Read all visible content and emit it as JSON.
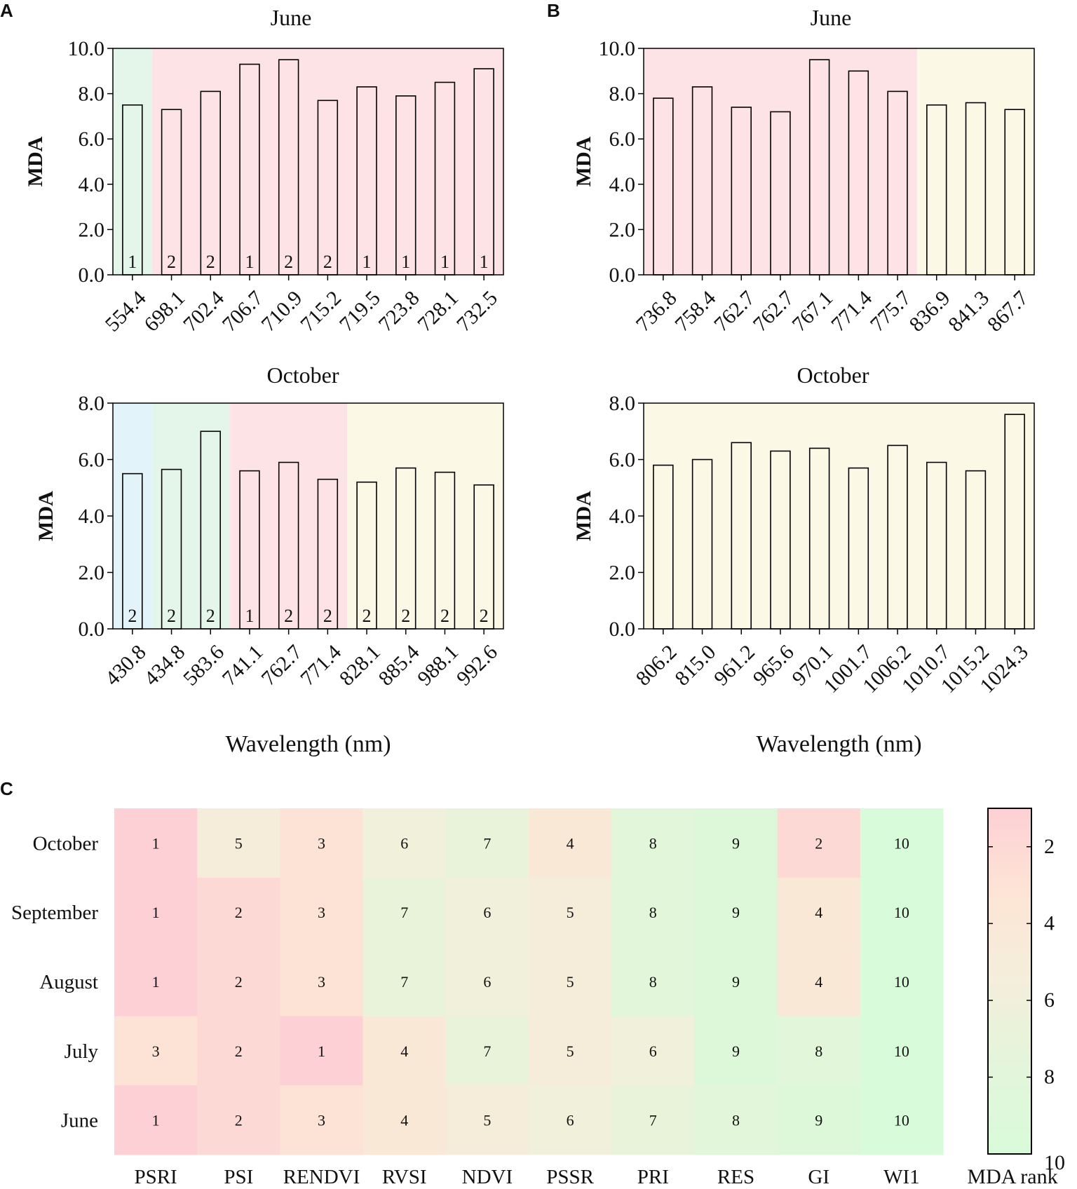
{
  "figure": {
    "panel_letters": [
      "A",
      "B",
      "C"
    ]
  },
  "chart_data": [
    {
      "id": "A_june",
      "type": "bar",
      "panel": "A",
      "title": "June",
      "ylabel": "MDA",
      "xlabel": "",
      "ylim": [
        0,
        10
      ],
      "yticks": [
        "0.0",
        "2.0",
        "4.0",
        "6.0",
        "8.0",
        "10.0"
      ],
      "categories": [
        "554.4",
        "698.1",
        "702.4",
        "706.7",
        "710.9",
        "715.2",
        "719.5",
        "723.8",
        "728.1",
        "732.5"
      ],
      "values": [
        7.5,
        7.3,
        8.1,
        9.3,
        9.5,
        7.7,
        8.3,
        7.9,
        8.5,
        9.1
      ],
      "bar_labels": [
        "1",
        "2",
        "2",
        "1",
        "2",
        "2",
        "1",
        "1",
        "1",
        "1"
      ],
      "regions": [
        {
          "from": 0,
          "to": 1,
          "color": "#e4f5ea"
        },
        {
          "from": 1,
          "to": 10,
          "color": "#fde3e5"
        }
      ]
    },
    {
      "id": "A_october",
      "type": "bar",
      "panel": "A",
      "title": "October",
      "ylabel": "MDA",
      "xlabel": "Wavelength (nm)",
      "ylim": [
        0,
        8
      ],
      "yticks": [
        "0.0",
        "2.0",
        "4.0",
        "6.0",
        "8.0"
      ],
      "categories": [
        "430.8",
        "434.8",
        "583.6",
        "741.1",
        "762.7",
        "771.4",
        "828.1",
        "885.4",
        "988.1",
        "992.6"
      ],
      "values": [
        5.5,
        5.65,
        7.0,
        5.6,
        5.9,
        5.3,
        5.2,
        5.7,
        5.55,
        5.1
      ],
      "bar_labels": [
        "2",
        "2",
        "2",
        "1",
        "2",
        "2",
        "2",
        "2",
        "2",
        "2"
      ],
      "regions": [
        {
          "from": 0,
          "to": 1,
          "color": "#e2f4fa"
        },
        {
          "from": 1,
          "to": 3,
          "color": "#e4f5ea"
        },
        {
          "from": 3,
          "to": 6,
          "color": "#fde3e5"
        },
        {
          "from": 6,
          "to": 10,
          "color": "#fcf8e6"
        }
      ]
    },
    {
      "id": "B_june",
      "type": "bar",
      "panel": "B",
      "title": "June",
      "ylabel": "MDA",
      "xlabel": "",
      "ylim": [
        0,
        10
      ],
      "yticks": [
        "0.0",
        "2.0",
        "4.0",
        "6.0",
        "8.0",
        "10.0"
      ],
      "categories": [
        "736.8",
        "758.4",
        "762.7",
        "762.7",
        "767.1",
        "771.4",
        "775.7",
        "836.9",
        "841.3",
        "867.7"
      ],
      "values": [
        7.8,
        8.3,
        7.4,
        7.2,
        9.5,
        9.0,
        8.1,
        7.5,
        7.6,
        7.3
      ],
      "bar_labels": [],
      "regions": [
        {
          "from": 0,
          "to": 7,
          "color": "#fde3e5"
        },
        {
          "from": 7,
          "to": 10,
          "color": "#fcf8e6"
        }
      ]
    },
    {
      "id": "B_october",
      "type": "bar",
      "panel": "B",
      "title": "October",
      "ylabel": "MDA",
      "xlabel": "Wavelength (nm)",
      "ylim": [
        0,
        8
      ],
      "yticks": [
        "0.0",
        "2.0",
        "4.0",
        "6.0",
        "8.0"
      ],
      "categories": [
        "806.2",
        "815.0",
        "961.2",
        "965.6",
        "970.1",
        "1001.7",
        "1006.2",
        "1010.7",
        "1015.2",
        "1024.3"
      ],
      "values": [
        5.8,
        6.0,
        6.6,
        6.3,
        6.4,
        5.7,
        6.5,
        5.9,
        5.6,
        7.6
      ],
      "bar_labels": [],
      "regions": [
        {
          "from": 0,
          "to": 10,
          "color": "#fcf8e6"
        }
      ]
    },
    {
      "id": "C_heatmap",
      "type": "heatmap",
      "panel": "C",
      "rows": [
        "October",
        "September",
        "August",
        "July",
        "June"
      ],
      "columns": [
        "PSRI",
        "PSI",
        "RENDVI",
        "RVSI",
        "NDVI",
        "PSSR",
        "PRI",
        "RES",
        "GI",
        "WI1"
      ],
      "values": [
        [
          1,
          5,
          3,
          6,
          7,
          4,
          8,
          9,
          2,
          10
        ],
        [
          1,
          2,
          3,
          7,
          6,
          5,
          8,
          9,
          4,
          10
        ],
        [
          1,
          2,
          3,
          7,
          6,
          5,
          8,
          9,
          4,
          10
        ],
        [
          3,
          2,
          1,
          4,
          7,
          5,
          6,
          9,
          8,
          10
        ],
        [
          1,
          2,
          3,
          4,
          5,
          6,
          7,
          8,
          9,
          10
        ]
      ],
      "colorbar": {
        "title": "MDA rank",
        "range": [
          1,
          10
        ],
        "ticks": [
          "2",
          "4",
          "6",
          "8",
          "10"
        ],
        "colors": [
          "#fdd0d5",
          "#fde5d5",
          "#f4eedb",
          "#e3f5da",
          "#d8fbd9"
        ]
      }
    }
  ]
}
